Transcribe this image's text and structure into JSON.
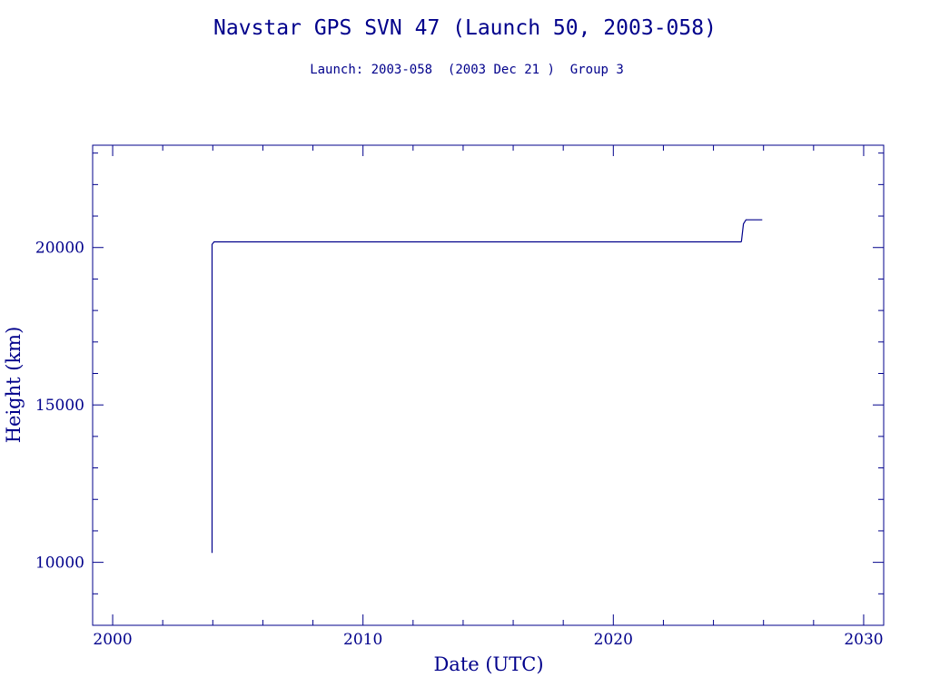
{
  "chart_data": {
    "type": "line",
    "title": "Navstar GPS SVN 47 (Launch 50, 2003-058)",
    "subtitle": "Launch: 2003-058  (2003 Dec 21 )  Group 3",
    "xlabel": "Date (UTC)",
    "ylabel": "Height (km)",
    "xlim": [
      1999.2,
      2030.8
    ],
    "ylim": [
      8000,
      23250
    ],
    "x_ticks": [
      2000,
      2010,
      2020,
      2030
    ],
    "x_tick_labels": [
      "2000",
      "2010",
      "2020",
      "2030"
    ],
    "y_ticks": [
      10000,
      15000,
      20000
    ],
    "y_tick_labels": [
      "10000",
      "15000",
      "20000"
    ],
    "grid": false,
    "colors": {
      "axes": "#00008b",
      "series": "#00008b",
      "text": "#00008b"
    },
    "series": [
      {
        "x": [
          2003.97,
          2003.97,
          2004.05,
          2025.1,
          2025.12,
          2025.2,
          2025.3,
          2025.5,
          2025.95
        ],
        "y": [
          10300,
          20100,
          20180,
          20180,
          20200,
          20750,
          20880,
          20880,
          20880
        ]
      }
    ]
  }
}
